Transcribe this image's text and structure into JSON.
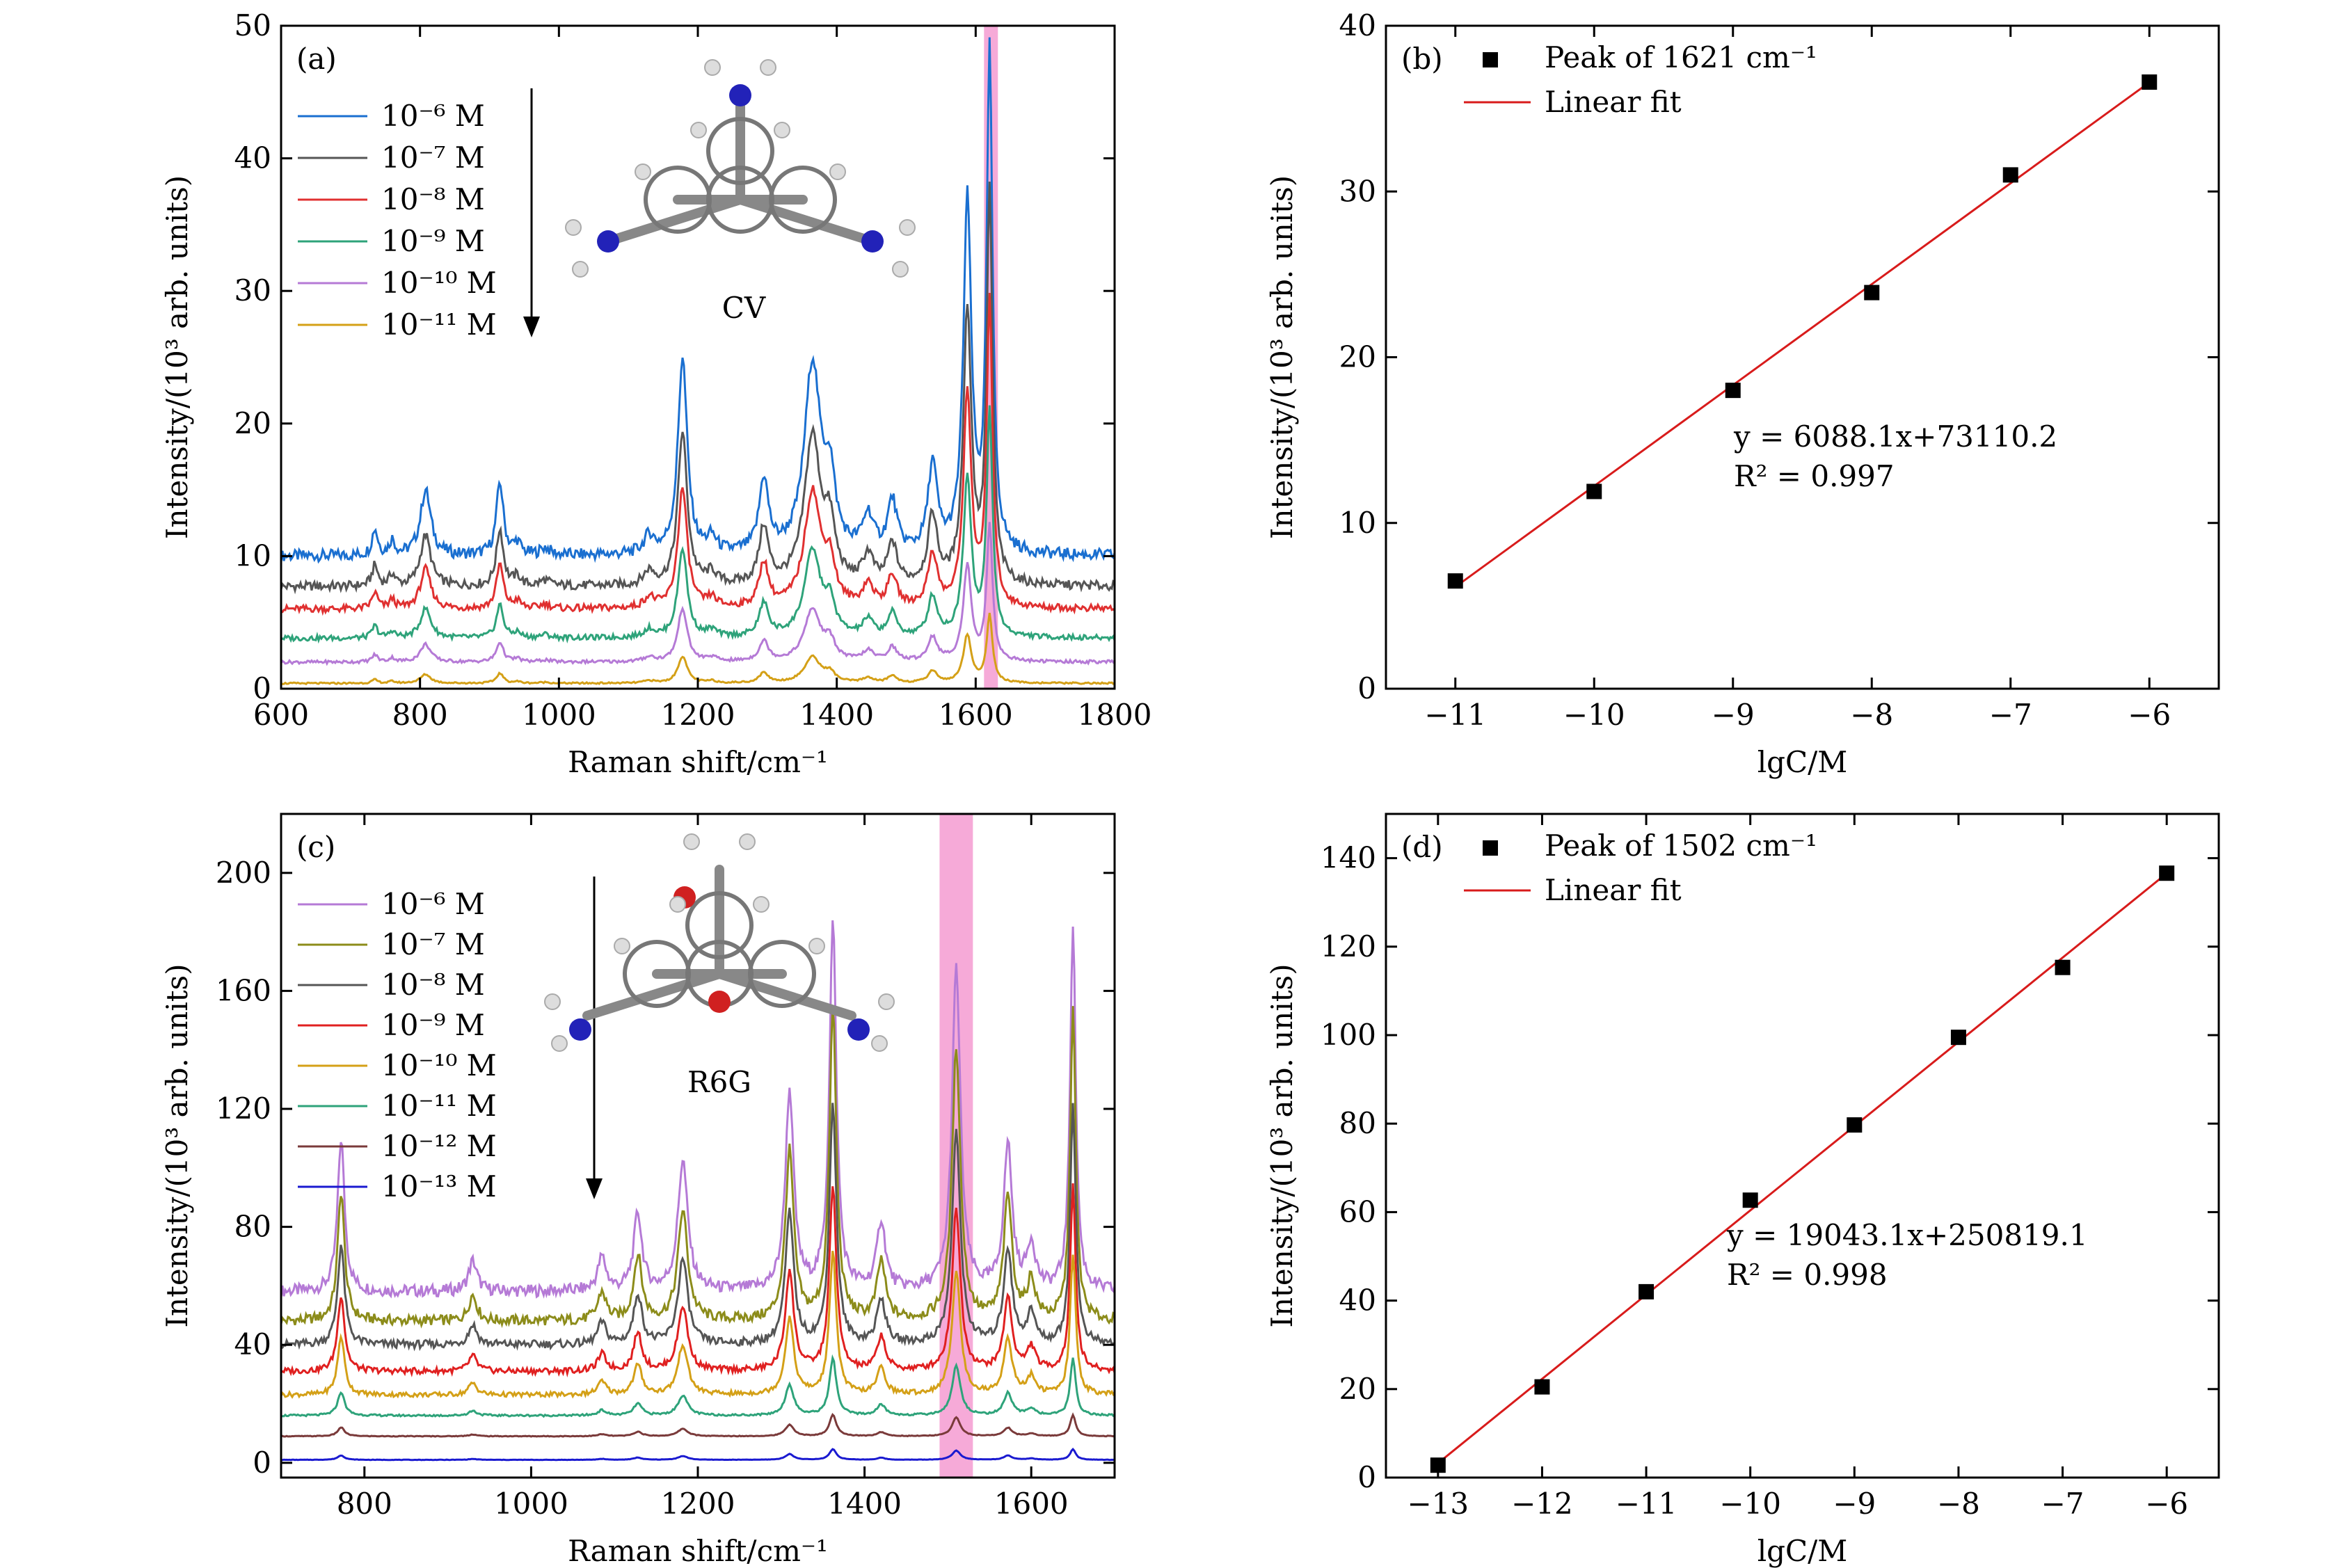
{
  "chart_data": [
    {
      "panel": "(a)",
      "type": "line",
      "xlabel": "Raman shift/cm⁻¹",
      "ylabel": "Intensity/(10³ arb. units)",
      "xlim": [
        600,
        1800
      ],
      "ylim": [
        0,
        50
      ],
      "xticks": [
        600,
        800,
        1000,
        1200,
        1400,
        1600,
        1800
      ],
      "yticks": [
        0,
        10,
        20,
        30,
        40,
        50
      ],
      "molecule_label": "CV",
      "highlight_band": [
        1612,
        1632
      ],
      "highlight_color": "#f59bd1",
      "peaks": [
        {
          "c": 735,
          "w": 5,
          "h": 0.18
        },
        {
          "c": 760,
          "w": 5,
          "h": 0.1
        },
        {
          "c": 808,
          "w": 9,
          "h": 0.45
        },
        {
          "c": 915,
          "w": 6,
          "h": 0.5
        },
        {
          "c": 940,
          "w": 6,
          "h": 0.08
        },
        {
          "c": 980,
          "w": 8,
          "h": 0.05
        },
        {
          "c": 1130,
          "w": 9,
          "h": 0.12
        },
        {
          "c": 1178,
          "w": 8,
          "h": 1.35
        },
        {
          "c": 1220,
          "w": 8,
          "h": 0.1
        },
        {
          "c": 1295,
          "w": 8,
          "h": 0.5
        },
        {
          "c": 1365,
          "w": 14,
          "h": 1.3
        },
        {
          "c": 1390,
          "w": 9,
          "h": 0.45
        },
        {
          "c": 1445,
          "w": 9,
          "h": 0.25
        },
        {
          "c": 1480,
          "w": 8,
          "h": 0.35
        },
        {
          "c": 1538,
          "w": 8,
          "h": 0.6
        },
        {
          "c": 1588,
          "w": 7,
          "h": 2.4
        },
        {
          "c": 1620,
          "w": 5,
          "h": 3.4
        }
      ],
      "series": [
        {
          "name": "10⁻⁶ M",
          "color": "#1a6fd0",
          "baseline": 10.0,
          "scale": 11.0
        },
        {
          "name": "10⁻⁷ M",
          "color": "#555555",
          "baseline": 7.7,
          "scale": 8.6
        },
        {
          "name": "10⁻⁸ M",
          "color": "#e03030",
          "baseline": 6.0,
          "scale": 6.7
        },
        {
          "name": "10⁻⁹ M",
          "color": "#2ea37a",
          "baseline": 3.8,
          "scale": 5.0
        },
        {
          "name": "10⁻¹⁰ M",
          "color": "#b57ad6",
          "baseline": 2.0,
          "scale": 3.0
        },
        {
          "name": "10⁻¹¹ M",
          "color": "#d4a017",
          "baseline": 0.4,
          "scale": 1.5
        }
      ]
    },
    {
      "panel": "(b)",
      "type": "scatter",
      "xlabel": "lgC/M",
      "ylabel": "Intensity/(10³ arb. units)",
      "xlim": [
        -11.5,
        -5.5
      ],
      "ylim": [
        0,
        40
      ],
      "xticks": [
        -11,
        -10,
        -9,
        -8,
        -7,
        -6
      ],
      "yticks": [
        0,
        10,
        20,
        30,
        40
      ],
      "x": [
        -11,
        -10,
        -9,
        -8,
        -7,
        -6
      ],
      "y": [
        6.5,
        11.9,
        18.0,
        23.9,
        31.0,
        36.6
      ],
      "fit": {
        "slope": 6.0881,
        "intercept": 73.1102
      },
      "legend": [
        "Peak of 1621 cm⁻¹",
        "Linear fit"
      ],
      "equation": "y = 6088.1x+73110.2",
      "r2": "R² = 0.997"
    },
    {
      "panel": "(c)",
      "type": "line",
      "xlabel": "Raman shift/cm⁻¹",
      "ylabel": "Intensity/(10³ arb. units)",
      "xlim": [
        700,
        1700
      ],
      "ylim": [
        -5,
        220
      ],
      "xticks": [
        800,
        1000,
        1200,
        1400,
        1600
      ],
      "yticks": [
        0,
        40,
        80,
        120,
        160,
        200
      ],
      "molecule_label": "R6G",
      "highlight_band": [
        1490,
        1530
      ],
      "highlight_color": "#f59bd1",
      "peaks": [
        {
          "c": 772,
          "w": 5,
          "h": 1.0
        },
        {
          "c": 930,
          "w": 6,
          "h": 0.2
        },
        {
          "c": 1085,
          "w": 6,
          "h": 0.22
        },
        {
          "c": 1128,
          "w": 6,
          "h": 0.5
        },
        {
          "c": 1182,
          "w": 7,
          "h": 0.85
        },
        {
          "c": 1310,
          "w": 6,
          "h": 1.3
        },
        {
          "c": 1362,
          "w": 5,
          "h": 2.4
        },
        {
          "c": 1420,
          "w": 6,
          "h": 0.45
        },
        {
          "c": 1510,
          "w": 6,
          "h": 2.1
        },
        {
          "c": 1572,
          "w": 6,
          "h": 0.95
        },
        {
          "c": 1600,
          "w": 6,
          "h": 0.3
        },
        {
          "c": 1650,
          "w": 4,
          "h": 2.4
        }
      ],
      "series": [
        {
          "name": "10⁻⁶ M",
          "color": "#b57ad6",
          "baseline": 58,
          "scale": 52
        },
        {
          "name": "10⁻⁷ M",
          "color": "#8c8c1a",
          "baseline": 48,
          "scale": 44
        },
        {
          "name": "10⁻⁸ M",
          "color": "#555555",
          "baseline": 40,
          "scale": 34
        },
        {
          "name": "10⁻⁹ M",
          "color": "#e02020",
          "baseline": 31,
          "scale": 26
        },
        {
          "name": "10⁻¹⁰ M",
          "color": "#d4a017",
          "baseline": 23,
          "scale": 20
        },
        {
          "name": "10⁻¹¹ M",
          "color": "#2ea37a",
          "baseline": 16,
          "scale": 8
        },
        {
          "name": "10⁻¹² M",
          "color": "#7a3a3a",
          "baseline": 9,
          "scale": 3
        },
        {
          "name": "10⁻¹³ M",
          "color": "#1a1ad0",
          "baseline": 1,
          "scale": 1.5
        }
      ]
    },
    {
      "panel": "(d)",
      "type": "scatter",
      "xlabel": "lgC/M",
      "ylabel": "Intensity/(10³ arb. units)",
      "xlim": [
        -13.5,
        -5.5
      ],
      "ylim": [
        0,
        150
      ],
      "xticks": [
        -13,
        -12,
        -11,
        -10,
        -9,
        -8,
        -7,
        -6
      ],
      "yticks": [
        0,
        20,
        40,
        60,
        80,
        100,
        120,
        140
      ],
      "x": [
        -13,
        -12,
        -11,
        -10,
        -9,
        -8,
        -7,
        -6
      ],
      "y": [
        2.8,
        20.5,
        42.0,
        62.7,
        79.7,
        99.5,
        115.3,
        136.6
      ],
      "fit": {
        "slope": 19.0431,
        "intercept": 250.8191
      },
      "legend": [
        "Peak of 1502 cm⁻¹",
        "Linear fit"
      ],
      "equation": "y = 19043.1x+250819.1",
      "r2": "R² = 0.998"
    }
  ]
}
